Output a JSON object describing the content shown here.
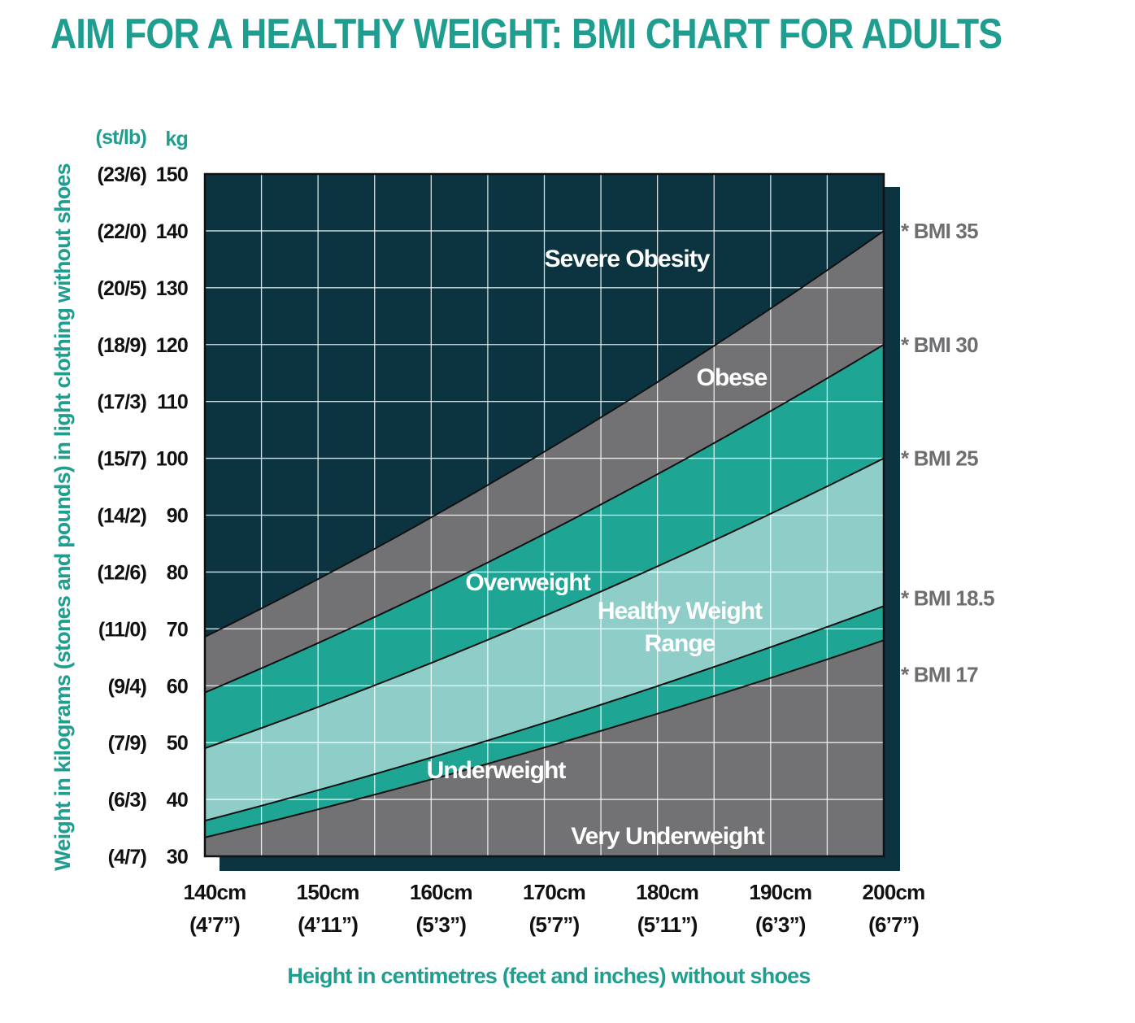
{
  "title": "AIM FOR A HEALTHY WEIGHT: BMI CHART FOR ADULTS",
  "colors": {
    "accent": "#1f9e90",
    "severe_obesity": "#0b3440",
    "obese": "#727274",
    "overweight": "#1ea594",
    "healthy": "#8fcec8",
    "underweight": "#1ea594",
    "very_underweight": "#727274",
    "grid": "#ffffff",
    "shadow": "#0b3440",
    "bmi_label": "#6d6e70"
  },
  "chart_data": {
    "type": "area",
    "title": "AIM FOR A HEALTHY WEIGHT: BMI CHART FOR ADULTS",
    "xlabel": "Height in centimetres (feet and inches) without shoes",
    "ylabel": "Weight in kilograms (stones and pounds) in light clothing without shoes",
    "xlim": [
      140,
      200
    ],
    "ylim": [
      30,
      150
    ],
    "grid": true,
    "y_unit_header": "kg",
    "y_alt_unit_header": "(st/lb)",
    "x_ticks": [
      {
        "value": 140,
        "label": "140cm",
        "sub": "(4’7”)"
      },
      {
        "value": 150,
        "label": "150cm",
        "sub": "(4’11”)"
      },
      {
        "value": 160,
        "label": "160cm",
        "sub": "(5’3”)"
      },
      {
        "value": 170,
        "label": "170cm",
        "sub": "(5’7”)"
      },
      {
        "value": 180,
        "label": "180cm",
        "sub": "(5’11”)"
      },
      {
        "value": 190,
        "label": "190cm",
        "sub": "(6’3”)"
      },
      {
        "value": 200,
        "label": "200cm",
        "sub": "(6’7”)"
      }
    ],
    "y_ticks": [
      {
        "value": 150,
        "label": "150",
        "alt": "(23/6)"
      },
      {
        "value": 140,
        "label": "140",
        "alt": "(22/0)"
      },
      {
        "value": 130,
        "label": "130",
        "alt": "(20/5)"
      },
      {
        "value": 120,
        "label": "120",
        "alt": "(18/9)"
      },
      {
        "value": 110,
        "label": "110",
        "alt": "(17/3)"
      },
      {
        "value": 100,
        "label": "100",
        "alt": "(15/7)"
      },
      {
        "value": 90,
        "label": "90",
        "alt": "(14/2)"
      },
      {
        "value": 80,
        "label": "80",
        "alt": "(12/6)"
      },
      {
        "value": 70,
        "label": "70",
        "alt": "(11/0)"
      },
      {
        "value": 60,
        "label": "60",
        "alt": "(9/4)"
      },
      {
        "value": 50,
        "label": "50",
        "alt": "(7/9)"
      },
      {
        "value": 40,
        "label": "40",
        "alt": "(6/3)"
      },
      {
        "value": 30,
        "label": "30",
        "alt": "(4/7)"
      }
    ],
    "bmi_lines": [
      {
        "bmi": 35,
        "label": "* BMI 35"
      },
      {
        "bmi": 30,
        "label": "* BMI 30"
      },
      {
        "bmi": 25,
        "label": "* BMI 25"
      },
      {
        "bmi": 18.5,
        "label": "* BMI 18.5"
      },
      {
        "bmi": 17,
        "label": "* BMI 17"
      }
    ],
    "zones": [
      {
        "name": "Severe Obesity",
        "label_lines": [
          "Severe Obesity"
        ],
        "bmi_min": 35,
        "bmi_max": null,
        "color_key": "severe_obesity"
      },
      {
        "name": "Obese",
        "label_lines": [
          "Obese"
        ],
        "bmi_min": 30,
        "bmi_max": 35,
        "color_key": "obese"
      },
      {
        "name": "Overweight",
        "label_lines": [
          "Overweight"
        ],
        "bmi_min": 25,
        "bmi_max": 30,
        "color_key": "overweight"
      },
      {
        "name": "Healthy Weight Range",
        "label_lines": [
          "Healthy Weight",
          "Range"
        ],
        "bmi_min": 18.5,
        "bmi_max": 25,
        "color_key": "healthy"
      },
      {
        "name": "Underweight",
        "label_lines": [
          "Underweight"
        ],
        "bmi_min": 17,
        "bmi_max": 18.5,
        "color_key": "underweight"
      },
      {
        "name": "Very Underweight",
        "label_lines": [
          "Very Underweight"
        ],
        "bmi_min": null,
        "bmi_max": 17,
        "color_key": "very_underweight"
      }
    ]
  }
}
